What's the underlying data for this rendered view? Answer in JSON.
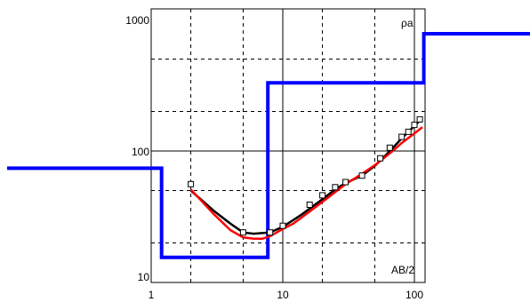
{
  "chart_data": {
    "type": "line",
    "x_scale": "log",
    "y_scale": "log",
    "xlim": [
      1,
      120
    ],
    "ylim": [
      10,
      1000
    ],
    "grid": true,
    "x_label": "AB/2",
    "y_label": "ρa",
    "x_ticks": [
      {
        "value": 1,
        "label": "1"
      },
      {
        "value": 10,
        "label": "10"
      },
      {
        "value": 100,
        "label": "100"
      }
    ],
    "y_ticks": [
      {
        "value": 10,
        "label": "10"
      },
      {
        "value": 100,
        "label": "100"
      },
      {
        "value": 1000,
        "label": "1000"
      }
    ],
    "colors": {
      "observed": "#000000",
      "calculated": "#ff0000",
      "layers": "#0000ff",
      "grid": "#000000"
    },
    "observed": [
      [
        2.0,
        56
      ],
      [
        5.0,
        24
      ],
      [
        8.0,
        24
      ],
      [
        10.0,
        27
      ],
      [
        16.0,
        39
      ],
      [
        20.0,
        46
      ],
      [
        25.0,
        53
      ],
      [
        30.0,
        58
      ],
      [
        40.0,
        65
      ],
      [
        55.0,
        88
      ],
      [
        65.0,
        106
      ],
      [
        80.0,
        128
      ],
      [
        90.0,
        140
      ],
      [
        100.0,
        158
      ],
      [
        110.0,
        174
      ]
    ],
    "observed_curve": [
      [
        2.0,
        50
      ],
      [
        3.0,
        35
      ],
      [
        4.0,
        28
      ],
      [
        5.0,
        24
      ],
      [
        6.0,
        23.5
      ],
      [
        8.0,
        24
      ],
      [
        10.0,
        26.5
      ],
      [
        14.0,
        33
      ],
      [
        20.0,
        43
      ],
      [
        25.0,
        51
      ],
      [
        30.0,
        57
      ],
      [
        40.0,
        65
      ],
      [
        50.0,
        77
      ],
      [
        60.0,
        92
      ],
      [
        70.0,
        108
      ],
      [
        80.0,
        125
      ],
      [
        90.0,
        140
      ],
      [
        100.0,
        155
      ],
      [
        110.0,
        170
      ]
    ],
    "calculated_curve": [
      [
        2.0,
        51
      ],
      [
        3.0,
        33
      ],
      [
        4.0,
        25
      ],
      [
        5.0,
        22
      ],
      [
        6.0,
        21.5
      ],
      [
        7.0,
        21.5
      ],
      [
        8.0,
        22.5
      ],
      [
        10.0,
        25.5
      ],
      [
        12.0,
        28
      ],
      [
        15.0,
        33
      ],
      [
        20.0,
        41
      ],
      [
        30.0,
        56
      ],
      [
        40.0,
        67
      ],
      [
        50.0,
        78
      ],
      [
        60.0,
        90
      ],
      [
        70.0,
        102
      ],
      [
        80.0,
        115
      ],
      [
        100.0,
        136
      ],
      [
        115.0,
        152
      ]
    ],
    "layer_model": [
      [
        0.2,
        74
      ],
      [
        1.2,
        74
      ],
      [
        1.2,
        15.5
      ],
      [
        7.7,
        15.5
      ],
      [
        7.7,
        330
      ],
      [
        118,
        330
      ],
      [
        118,
        780
      ],
      [
        400,
        780
      ]
    ]
  }
}
